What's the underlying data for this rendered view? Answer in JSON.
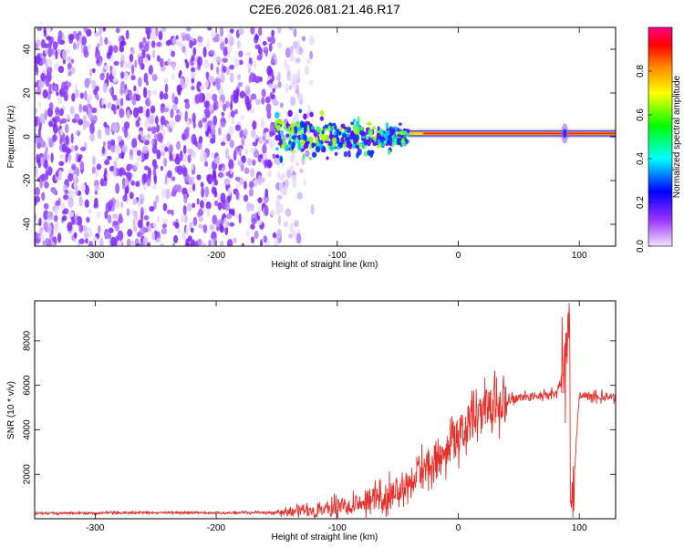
{
  "title": "C2E6.2026.081.21.46.R17",
  "chart_data": [
    {
      "type": "heatmap",
      "xlabel": "Height of straight line (km)",
      "ylabel": "Frequency (Hz)",
      "xlim": [
        -350,
        130
      ],
      "ylim": [
        -50,
        50
      ],
      "xticks": [
        -300,
        -200,
        -100,
        0,
        100
      ],
      "yticks": [
        -40,
        -20,
        0,
        20,
        40
      ],
      "colorbar": {
        "label": "Normalized spectral amplitude",
        "range": [
          0.0,
          1.0
        ],
        "ticks": [
          0.0,
          0.2,
          0.4,
          0.6,
          0.8
        ]
      },
      "regions": [
        {
          "x": [
            -350,
            -150
          ],
          "desc": "noise",
          "amplitude": 0.15
        },
        {
          "x": [
            -150,
            -40
          ],
          "desc": "scintillating tone near 0 Hz",
          "freq": 0,
          "amplitude": 0.5
        },
        {
          "x": [
            -40,
            130
          ],
          "desc": "strong carrier",
          "freq": 1.5,
          "amplitude": 0.95
        }
      ]
    },
    {
      "type": "line",
      "xlabel": "Height of straight line (km)",
      "ylabel": "SNR (10 * v/v)",
      "xlim": [
        -350,
        130
      ],
      "ylim": [
        0,
        9800
      ],
      "xticks": [
        -300,
        -200,
        -100,
        0,
        100
      ],
      "yticks": [
        2000,
        4000,
        6000,
        8000
      ],
      "color": "#e8302a",
      "series": [
        {
          "name": "SNR",
          "x": [
            -350,
            -300,
            -250,
            -200,
            -150,
            -120,
            -100,
            -80,
            -60,
            -50,
            -40,
            -30,
            -20,
            -10,
            0,
            10,
            20,
            30,
            40,
            60,
            80,
            88,
            92,
            94,
            100,
            110,
            130
          ],
          "y": [
            250,
            250,
            280,
            260,
            280,
            350,
            550,
            800,
            1000,
            1300,
            1800,
            2300,
            2700,
            3200,
            3700,
            4300,
            4700,
            5000,
            5300,
            5500,
            5600,
            6500,
            9600,
            300,
            5600,
            5500,
            5500
          ]
        }
      ]
    }
  ]
}
